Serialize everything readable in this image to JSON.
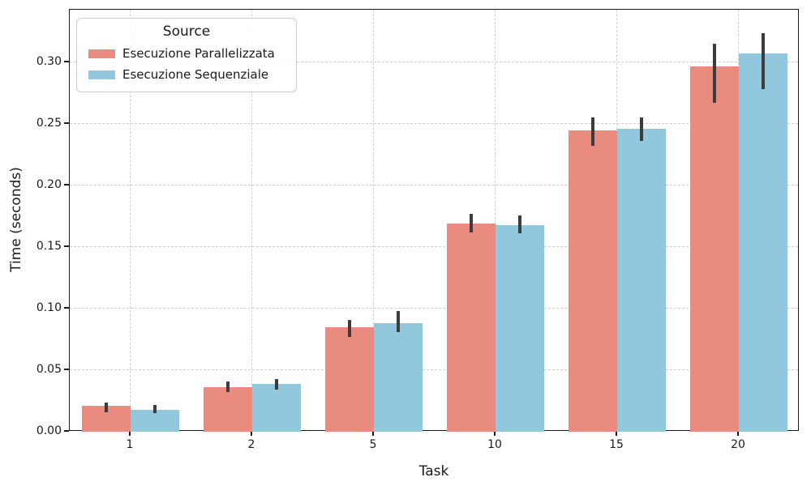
{
  "chart_data": {
    "type": "bar",
    "title": "",
    "xlabel": "Task",
    "ylabel": "Time (seconds)",
    "categories": [
      "1",
      "2",
      "5",
      "10",
      "15",
      "20"
    ],
    "series": [
      {
        "name": "Esecuzione Parallelizzata",
        "color": "#e98b7f",
        "values": [
          0.021,
          0.036,
          0.085,
          0.169,
          0.245,
          0.297
        ],
        "err_low": [
          0.016,
          0.032,
          0.077,
          0.162,
          0.232,
          0.267
        ],
        "err_high": [
          0.024,
          0.041,
          0.091,
          0.177,
          0.255,
          0.315
        ]
      },
      {
        "name": "Esecuzione Sequenziale",
        "color": "#92c8dd",
        "values": [
          0.018,
          0.039,
          0.088,
          0.168,
          0.246,
          0.307
        ],
        "err_low": [
          0.015,
          0.034,
          0.081,
          0.161,
          0.236,
          0.278
        ],
        "err_high": [
          0.022,
          0.043,
          0.098,
          0.176,
          0.255,
          0.324
        ]
      }
    ],
    "legend": {
      "title": "Source",
      "position": "upper left"
    },
    "yticks": [
      0.0,
      0.05,
      0.1,
      0.15,
      0.2,
      0.25,
      0.3
    ],
    "ylim": [
      0,
      0.3428
    ],
    "grid": true,
    "errorbar_color": "#3c3c3c",
    "grid_color": "#cfcfcf"
  }
}
